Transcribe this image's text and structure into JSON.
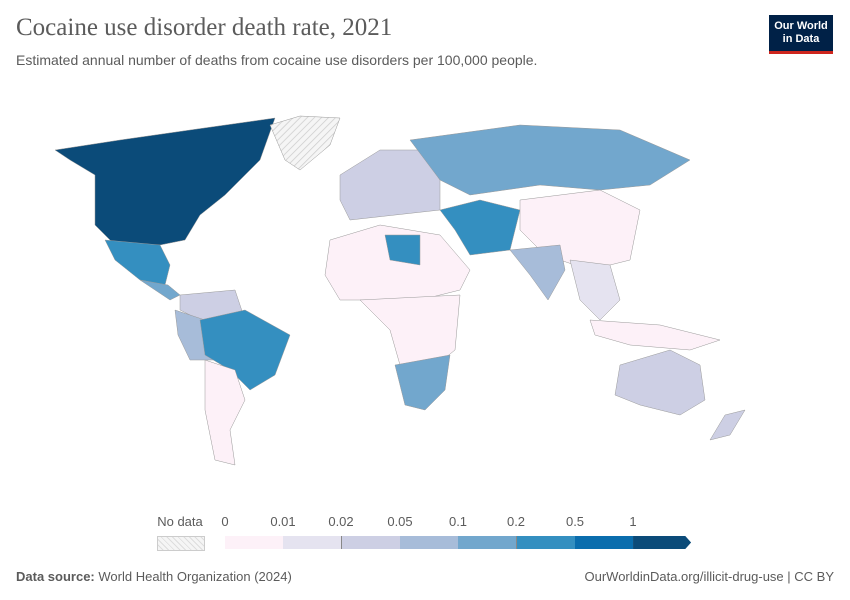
{
  "header": {
    "title": "Cocaine use disorder death rate, 2021",
    "subtitle": "Estimated annual number of deaths from cocaine use disorders per 100,000 people.",
    "logo_line1": "Our World",
    "logo_line2": "in Data"
  },
  "legend": {
    "no_data_label": "No data",
    "ticks": [
      "0",
      "0.01",
      "0.02",
      "0.05",
      "0.1",
      "0.2",
      "0.5",
      "1"
    ],
    "colors": [
      "#fdf1f8",
      "#e5e3f0",
      "#cdcfe4",
      "#a7bcd9",
      "#72a7cd",
      "#348fc0",
      "#0a6dad",
      "#0b4b79"
    ],
    "no_data_color": "#f0f0f0"
  },
  "footer": {
    "source_label": "Data source:",
    "source": "World Health Organization (2024)",
    "link": "OurWorldinData.org/illicit-drug-use",
    "license": "CC BY"
  }
}
